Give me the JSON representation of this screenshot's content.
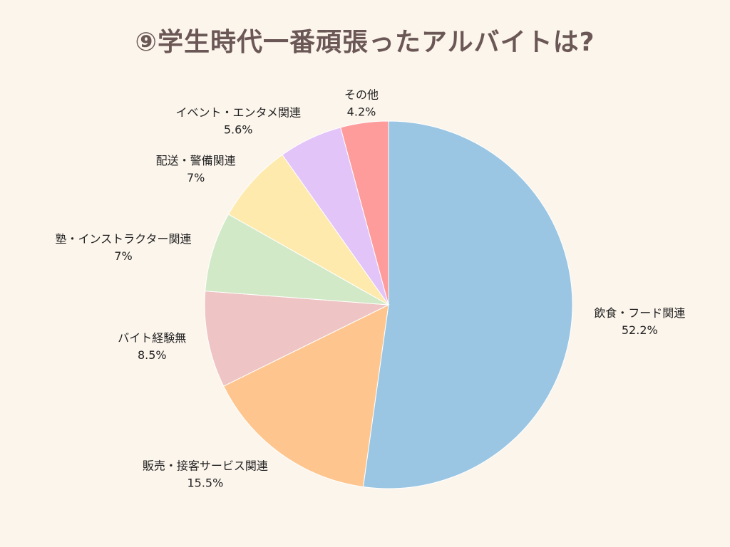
{
  "chart_data": {
    "type": "pie",
    "title": "⑨学生時代一番頑張ったアルバイトは?",
    "start_angle_deg": 90,
    "direction": "clockwise",
    "slices": [
      {
        "label": "飲食・フード関連",
        "value": 52.2,
        "value_label": "52.2%",
        "color": "#9ac6e3"
      },
      {
        "label": "販売・接客サービス関連",
        "value": 15.5,
        "value_label": "15.5%",
        "color": "#fec68e"
      },
      {
        "label": "バイト経験無",
        "value": 8.5,
        "value_label": "8.5%",
        "color": "#efc4c4"
      },
      {
        "label": "塾・インストラクター関連",
        "value": 7,
        "value_label": "7%",
        "color": "#d1e9c6"
      },
      {
        "label": "配送・警備関連",
        "value": 7,
        "value_label": "7%",
        "color": "#feeaad"
      },
      {
        "label": "イベント・エンタメ関連",
        "value": 5.6,
        "value_label": "5.6%",
        "color": "#e3c4f9"
      },
      {
        "label": "その他",
        "value": 4.2,
        "value_label": "4.2%",
        "color": "#fe9b9b"
      }
    ]
  }
}
